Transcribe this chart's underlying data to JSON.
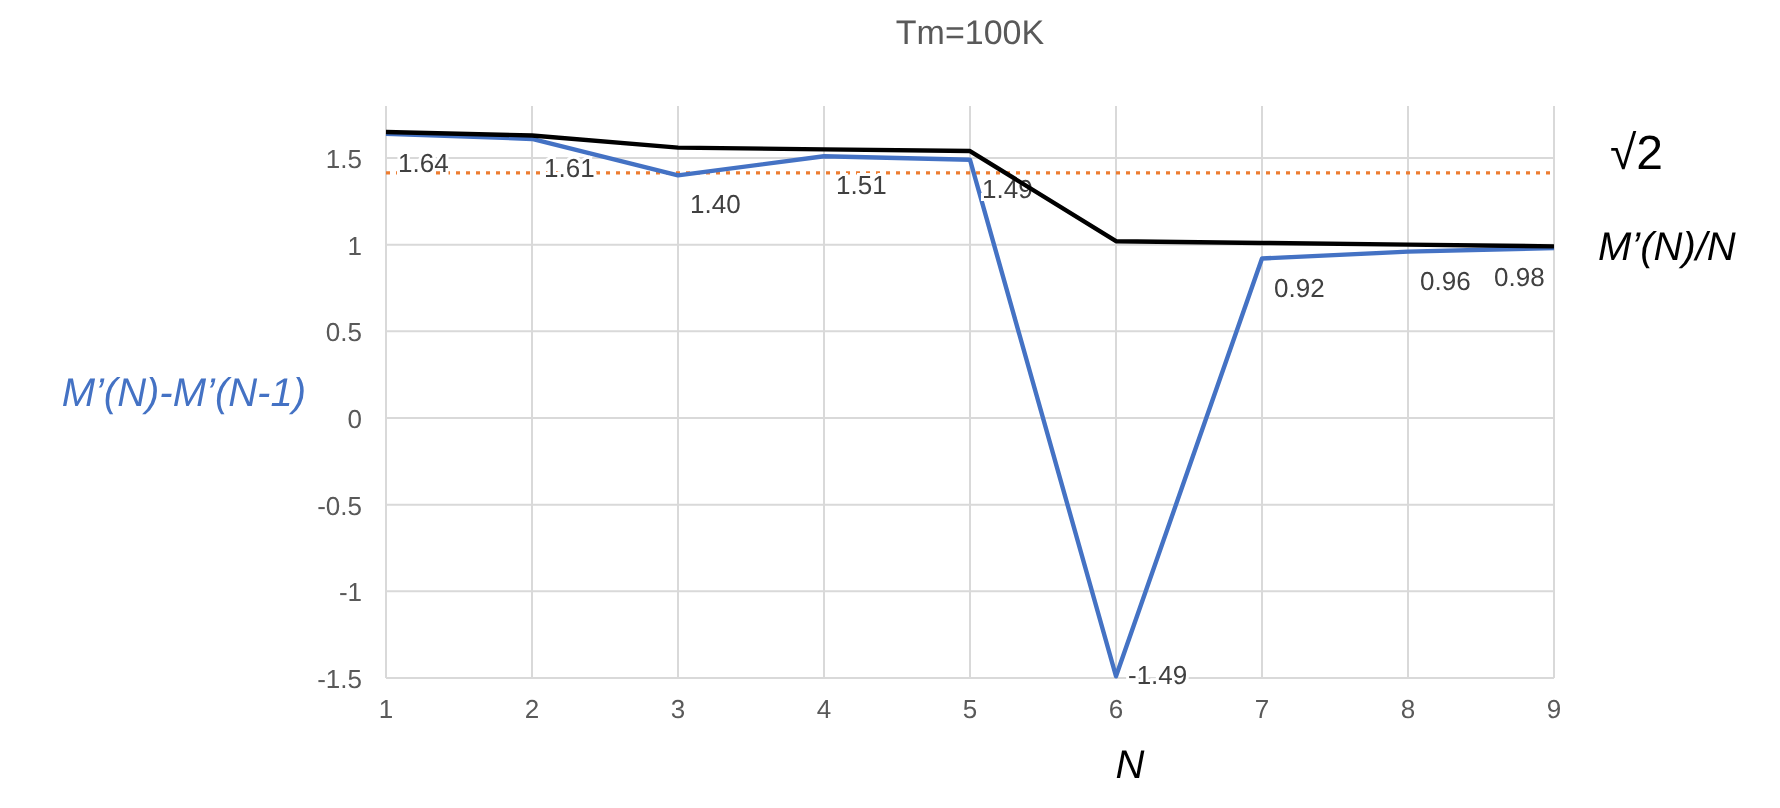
{
  "chart_data": {
    "type": "line",
    "title": "Tm=100K",
    "xlabel": "N",
    "x": [
      1,
      2,
      3,
      4,
      5,
      6,
      7,
      8,
      9
    ],
    "xlim": [
      1,
      9
    ],
    "xticks": [
      1,
      2,
      3,
      4,
      5,
      6,
      7,
      8,
      9
    ],
    "ylim": [
      -1.5,
      1.8
    ],
    "yticks": [
      -1.5,
      -1,
      -0.5,
      0,
      0.5,
      1,
      1.5
    ],
    "grid": true,
    "marker": "none",
    "line_style": "solid",
    "series": [
      {
        "name": "M’(N)-M’(N-1)",
        "color": "#4472c4",
        "values": [
          1.64,
          1.61,
          1.4,
          1.51,
          1.49,
          -1.49,
          0.92,
          0.96,
          0.98
        ],
        "value_labels": [
          "1.64",
          "1.61",
          "1.40",
          "1.51",
          "1.49",
          "-1.49",
          "0.92",
          "0.96",
          "0.98"
        ]
      },
      {
        "name": "M’(N)/N",
        "color": "#000000",
        "values": [
          1.65,
          1.63,
          1.56,
          1.55,
          1.54,
          1.02,
          1.01,
          1.0,
          0.99
        ]
      }
    ],
    "ref_lines": [
      {
        "axis": "y",
        "value": 1.414,
        "label": "√2",
        "color": "#ed7d31",
        "line_style": "dotted"
      }
    ]
  }
}
